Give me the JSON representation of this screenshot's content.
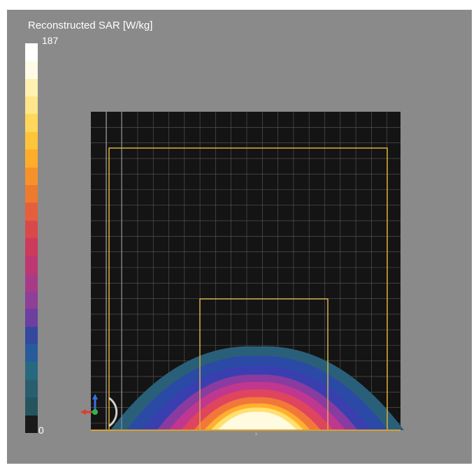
{
  "legend": {
    "title": "Reconstructed SAR [W/kg]",
    "max_label": "187",
    "min_label": "0",
    "colors": [
      "#ffffff",
      "#fffbe6",
      "#fff2b0",
      "#ffe68a",
      "#ffd75a",
      "#ffc53a",
      "#ffad2a",
      "#f7922a",
      "#ee7a2e",
      "#e4603c",
      "#d9494c",
      "#cc3a5c",
      "#be3772",
      "#a93b86",
      "#8e3f98",
      "#6d3f9f",
      "#34489f",
      "#275c9a",
      "#27697f",
      "#285e6e",
      "#25545f",
      "#1a1a1a"
    ]
  },
  "sar_field": {
    "contour_levels": [
      {
        "level": 0.12,
        "color": "#2a5f79"
      },
      {
        "level": 0.26,
        "color": "#2b4aa5"
      },
      {
        "level": 0.4,
        "color": "#3a3fb0"
      },
      {
        "level": 0.52,
        "color": "#8a3ba0"
      },
      {
        "level": 0.62,
        "color": "#c0378f"
      },
      {
        "level": 0.72,
        "color": "#e0455e"
      },
      {
        "level": 0.82,
        "color": "#f2783a"
      },
      {
        "level": 0.9,
        "color": "#ffb02e"
      },
      {
        "level": 0.95,
        "color": "#ffe070"
      },
      {
        "level": 1.0,
        "color": "#fffbe0"
      }
    ]
  },
  "colors": {
    "background": "#8a8a8a",
    "viewport": "#141414",
    "grid": "#5a5a5a",
    "outer_frame": "#e0b030",
    "inner_frame": "#d4b24a",
    "grid_highlight": "#bdbdbd"
  },
  "icons": {
    "axis_triad": "xyz-axis-triad-icon",
    "rotate": "rotate-handle-icon"
  }
}
